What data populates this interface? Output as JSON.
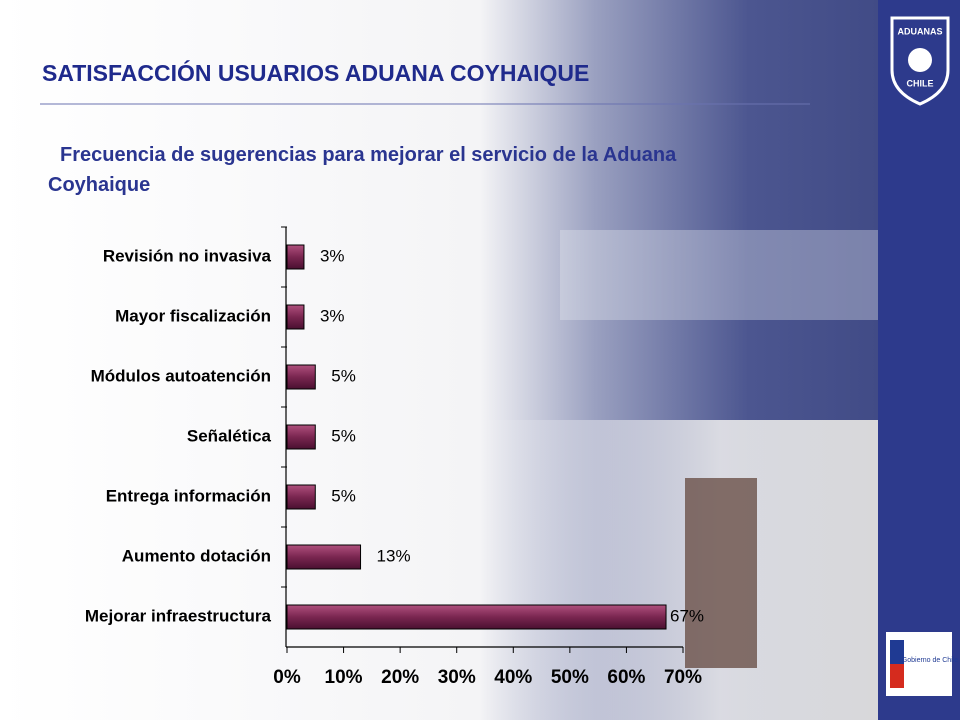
{
  "header": {
    "title": "SATISFACCIÓN USUARIOS ADUANA COYHAIQUE"
  },
  "logos": {
    "aduanas": [
      "ADUANAS",
      "CHILE"
    ],
    "gobierno": "Gobierno de Chile"
  },
  "chart_data": {
    "type": "hbar",
    "title": "Frecuencia de sugerencias para mejorar el servicio de la Aduana Coyhaique",
    "categories": [
      "Revisión no invasiva",
      "Mayor fiscalización",
      "Módulos autoatención",
      "Señalética",
      "Entrega información",
      "Aumento dotación",
      "Mejorar infraestructura"
    ],
    "values": [
      3,
      3,
      5,
      5,
      5,
      13,
      67
    ],
    "value_labels": [
      "3%",
      "3%",
      "5%",
      "5%",
      "5%",
      "13%",
      "67%"
    ],
    "color": "#7a2650",
    "xlim": [
      0,
      70
    ],
    "xticks": [
      {
        "value": 0,
        "label": "0%"
      },
      {
        "value": 10,
        "label": "10%"
      },
      {
        "value": 20,
        "label": "20%"
      },
      {
        "value": 30,
        "label": "30%"
      },
      {
        "value": 40,
        "label": "40%"
      },
      {
        "value": 50,
        "label": "50%"
      },
      {
        "value": 60,
        "label": "60%"
      },
      {
        "value": 70,
        "label": "70%"
      }
    ],
    "grid": false
  }
}
